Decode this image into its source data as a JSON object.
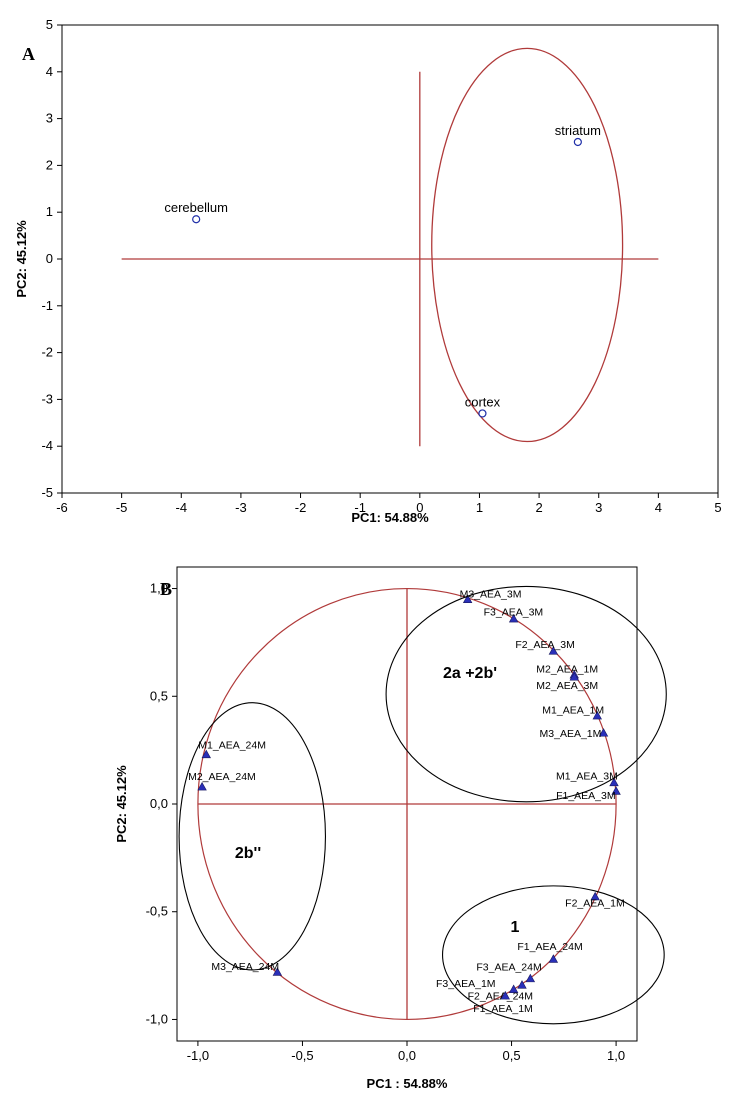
{
  "chart_data": [
    {
      "type": "scatter",
      "panel": "A",
      "xlabel": "PC1: 54.88%",
      "ylabel": "PC2: 45.12%",
      "xlim": [
        -6,
        5
      ],
      "ylim": [
        -5,
        5
      ],
      "xticks": [
        "-6",
        "-5",
        "-4",
        "-3",
        "-2",
        "-1",
        "0",
        "1",
        "2",
        "3",
        "4",
        "5"
      ],
      "yticks": [
        "-5",
        "-4",
        "-3",
        "-2",
        "-1",
        "0",
        "1",
        "2",
        "3",
        "4",
        "5"
      ],
      "points": [
        {
          "label": "cerebellum",
          "x": -3.75,
          "y": 0.85
        },
        {
          "label": "striatum",
          "x": 2.65,
          "y": 2.5
        },
        {
          "label": "cortex",
          "x": 1.05,
          "y": -3.3
        }
      ],
      "ellipse": {
        "cx": 1.8,
        "cy": 0.3,
        "rx": 1.6,
        "ry": 4.2
      },
      "crosshair": {
        "h": {
          "x1": -5,
          "x2": 4,
          "y": 0
        },
        "v": {
          "x": 0,
          "y1": -4,
          "y2": 4
        }
      },
      "colors": {
        "points": "#1f2fa8",
        "lines": "#b03a3a"
      }
    },
    {
      "type": "scatter",
      "panel": "B",
      "xlabel": "PC1 : 54.88%",
      "ylabel": "PC2: 45.12%",
      "xlim": [
        -1.1,
        1.1
      ],
      "ylim": [
        -1.1,
        1.1
      ],
      "xticks": [
        "-1,0",
        "-0,5",
        "0,0",
        "0,5",
        "1,0"
      ],
      "yticks": [
        "-1,0",
        "-0,5",
        "0,0",
        "0,5",
        "1,0"
      ],
      "points": [
        {
          "label": "M3_AEA_3M",
          "x": 0.29,
          "y": 0.95
        },
        {
          "label": "F3_AEA_3M",
          "x": 0.51,
          "y": 0.86
        },
        {
          "label": "F2_AEA_3M",
          "x": 0.7,
          "y": 0.71
        },
        {
          "label": "M2_AEA_1M",
          "x": 0.8,
          "y": 0.6
        },
        {
          "label": "M2_AEA_3M",
          "x": 0.8,
          "y": 0.59
        },
        {
          "label": "M1_AEA_1M",
          "x": 0.91,
          "y": 0.41
        },
        {
          "label": "M3_AEA_1M",
          "x": 0.94,
          "y": 0.33
        },
        {
          "label": "M1_AEA_3M",
          "x": 0.99,
          "y": 0.1
        },
        {
          "label": "F1_AEA_3M",
          "x": 1.0,
          "y": 0.06
        },
        {
          "label": "F2_AEA_1M",
          "x": 0.9,
          "y": -0.43
        },
        {
          "label": "F1_AEA_24M",
          "x": 0.7,
          "y": -0.72
        },
        {
          "label": "F3_AEA_24M",
          "x": 0.59,
          "y": -0.81
        },
        {
          "label": "F3_AEA_1M",
          "x": 0.55,
          "y": -0.84
        },
        {
          "label": "F2_AEA_24M",
          "x": 0.51,
          "y": -0.86
        },
        {
          "label": "F1_AEA_1M",
          "x": 0.47,
          "y": -0.89
        },
        {
          "label": "M1_AEA_24M",
          "x": -0.96,
          "y": 0.23
        },
        {
          "label": "M2_AEA_24M",
          "x": -0.98,
          "y": 0.08
        },
        {
          "label": "M3_AEA_24M",
          "x": -0.62,
          "y": -0.78
        }
      ],
      "groups": [
        {
          "label": "2a +2b'",
          "cx": 0.57,
          "cy": 0.51,
          "rx": 0.67,
          "ry": 0.5
        },
        {
          "label": "2b''",
          "cx": -0.74,
          "cy": -0.15,
          "rx": 0.35,
          "ry": 0.62
        },
        {
          "label": "1",
          "cx": 0.7,
          "cy": -0.7,
          "rx": 0.53,
          "ry": 0.32
        }
      ],
      "unit_circle": {
        "r": 1
      },
      "colors": {
        "points": "#2a2fb8",
        "circle": "#b03a3a",
        "groups": "#000000",
        "axes": "#b03a3a"
      }
    }
  ]
}
